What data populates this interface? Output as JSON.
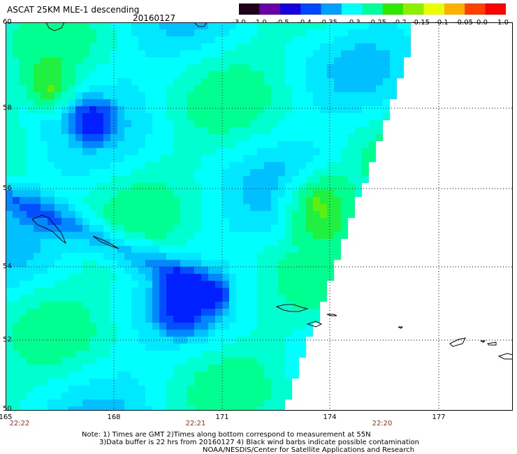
{
  "header": {
    "title": "ASCAT 25KM MLE-1 descending",
    "date": "20160127"
  },
  "colorbar": {
    "labels": [
      "-3.0",
      "-1.0",
      "-0.5",
      "-0.4",
      "-0.35",
      "-0.3",
      "-0.25",
      "-0.2",
      "-0.15",
      "-0.1",
      "-0.05",
      "0.0",
      "1.0"
    ],
    "colors": [
      "#200018",
      "#6a00a8",
      "#1600e0",
      "#0048ff",
      "#00a0ff",
      "#00ffff",
      "#00ff9a",
      "#2ee800",
      "#8cf000",
      "#eaff00",
      "#ffb000",
      "#ff4000",
      "#ff0000"
    ]
  },
  "axes": {
    "lat_labels": [
      "50",
      "52",
      "54",
      "56",
      "58",
      "60"
    ],
    "lon_labels": [
      "165",
      "168",
      "171",
      "174",
      "177"
    ],
    "time_labels": [
      "22:22",
      "22:21",
      "22:20"
    ]
  },
  "map_colors": {
    "land_outline": "#000000",
    "no_data": "#ffffff",
    "grid": "#000000"
  },
  "notes": {
    "line1": "Note: 1) Times are GMT 2)Times along bottom correspond to measurement at 55N",
    "line2": "3)Data buffer is 22 hrs from 20160127 4) Black wind barbs indicate possible contamination",
    "line3": "NOAA/NESDIS/Center for Satellite Applications and Research"
  }
}
